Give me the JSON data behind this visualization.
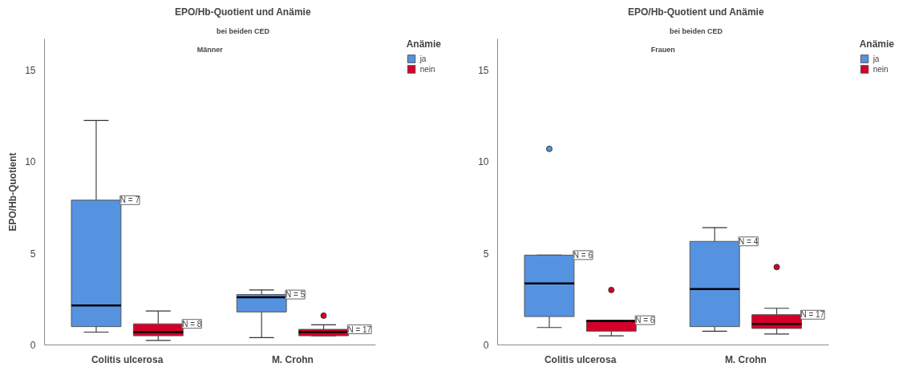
{
  "chart_data": [
    {
      "type": "box",
      "title": "EPO/Hb-Quotient und Anämie",
      "subtitle": "bei beiden CED",
      "annotations": [
        "Männer"
      ],
      "ylabel": "EPO/Hb-Quotient",
      "legend_title": "Anämie",
      "legend": "top right",
      "grid": false,
      "categories": [
        "Colitis ulcerosa",
        "M. Crohn"
      ],
      "ylim": [
        0,
        16.7
      ],
      "yticks": [
        0,
        5,
        10,
        15
      ],
      "series": [
        {
          "name": "ja",
          "color": "#5592e0",
          "value_labels": [
            "N = 7",
            "N = 5"
          ],
          "boxes": [
            {
              "low": 0.7,
              "q1": 1.0,
              "median": 2.15,
              "q3": 7.9,
              "high": 12.25
            },
            {
              "low": 0.4,
              "q1": 1.8,
              "median": 2.6,
              "q3": 2.75,
              "high": 3.0
            }
          ]
        },
        {
          "name": "nein",
          "color": "#d4002a",
          "value_labels": [
            "N = 8",
            "N = 17"
          ],
          "boxes": [
            {
              "low": 0.25,
              "q1": 0.5,
              "median": 0.7,
              "q3": 1.15,
              "high": 1.85
            },
            {
              "low": 0.5,
              "q1": 0.5,
              "median": 0.7,
              "q3": 0.85,
              "high": 1.1,
              "outliers": [
                1.6
              ]
            }
          ]
        }
      ]
    },
    {
      "type": "box",
      "title": "EPO/Hb-Quotient und Anämie",
      "subtitle": "bei beiden CED",
      "annotations": [
        "Frauen"
      ],
      "legend_title": "Anämie",
      "legend": "top right",
      "grid": false,
      "categories": [
        "Colitis ulcerosa",
        "M. Crohn"
      ],
      "ylim": [
        0,
        16.7
      ],
      "yticks": [
        0,
        5,
        10,
        15
      ],
      "series": [
        {
          "name": "ja",
          "color": "#5592e0",
          "value_labels": [
            "N = 6",
            "N = 4"
          ],
          "boxes": [
            {
              "low": 0.95,
              "q1": 1.55,
              "median": 3.35,
              "q3": 4.9,
              "high": 4.9,
              "outliers": [
                10.7
              ]
            },
            {
              "low": 0.75,
              "q1": 1.0,
              "median": 3.05,
              "q3": 5.65,
              "high": 6.4
            }
          ]
        },
        {
          "name": "nein",
          "color": "#d4002a",
          "value_labels": [
            "N = 6",
            "N = 17"
          ],
          "boxes": [
            {
              "low": 0.5,
              "q1": 0.75,
              "median": 1.3,
              "q3": 1.35,
              "high": 1.35,
              "outliers": [
                3.0
              ]
            },
            {
              "low": 0.6,
              "q1": 0.9,
              "median": 1.15,
              "q3": 1.65,
              "high": 2.0,
              "outliers": [
                4.25
              ]
            }
          ]
        }
      ]
    }
  ]
}
